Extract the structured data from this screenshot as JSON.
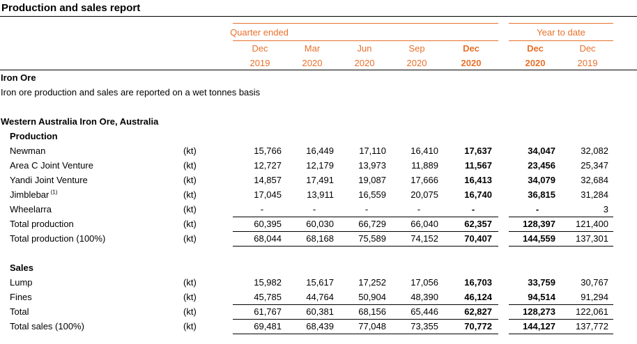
{
  "report": {
    "title": "Production and sales report",
    "group_quarter": "Quarter ended",
    "group_ytd": "Year to date",
    "columns": [
      {
        "month": "Dec",
        "year": "2019",
        "bold": false
      },
      {
        "month": "Mar",
        "year": "2020",
        "bold": false
      },
      {
        "month": "Jun",
        "year": "2020",
        "bold": false
      },
      {
        "month": "Sep",
        "year": "2020",
        "bold": false
      },
      {
        "month": "Dec",
        "year": "2020",
        "bold": true
      },
      {
        "month": "Dec",
        "year": "2020",
        "bold": true
      },
      {
        "month": "Dec",
        "year": "2019",
        "bold": false
      }
    ]
  },
  "section": {
    "heading": "Iron Ore",
    "note": "Iron ore production and sales are reported on a wet tonnes basis",
    "asset": "Western Australia Iron Ore, Australia"
  },
  "production": {
    "heading": "Production",
    "rows": [
      {
        "label": "Newman",
        "sup": "",
        "unit": "(kt)",
        "values": [
          "15,766",
          "16,449",
          "17,110",
          "16,410",
          "17,637",
          "34,047",
          "32,082"
        ]
      },
      {
        "label": "Area C Joint Venture",
        "sup": "",
        "unit": "(kt)",
        "values": [
          "12,727",
          "12,179",
          "13,973",
          "11,889",
          "11,567",
          "23,456",
          "25,347"
        ]
      },
      {
        "label": "Yandi Joint Venture",
        "sup": "",
        "unit": "(kt)",
        "values": [
          "14,857",
          "17,491",
          "19,087",
          "17,666",
          "16,413",
          "34,079",
          "32,684"
        ]
      },
      {
        "label": "Jimblebar",
        "sup": "(1)",
        "unit": "(kt)",
        "values": [
          "17,045",
          "13,911",
          "16,559",
          "20,075",
          "16,740",
          "36,815",
          "31,284"
        ]
      },
      {
        "label": "Wheelarra",
        "sup": "",
        "unit": "(kt)",
        "values": [
          "-",
          "-",
          "-",
          "-",
          "-",
          "-",
          "3"
        ]
      },
      {
        "label": "Total production",
        "sup": "",
        "unit": "(kt)",
        "values": [
          "60,395",
          "60,030",
          "66,729",
          "66,040",
          "62,357",
          "128,397",
          "121,400"
        ]
      },
      {
        "label": "Total production (100%)",
        "sup": "",
        "unit": "(kt)",
        "values": [
          "68,044",
          "68,168",
          "75,589",
          "74,152",
          "70,407",
          "144,559",
          "137,301"
        ]
      }
    ]
  },
  "sales": {
    "heading": "Sales",
    "rows": [
      {
        "label": "Lump",
        "sup": "",
        "unit": "(kt)",
        "values": [
          "15,982",
          "15,617",
          "17,252",
          "17,056",
          "16,703",
          "33,759",
          "30,767"
        ]
      },
      {
        "label": "Fines",
        "sup": "",
        "unit": "(kt)",
        "values": [
          "45,785",
          "44,764",
          "50,904",
          "48,390",
          "46,124",
          "94,514",
          "91,294"
        ]
      },
      {
        "label": "Total",
        "sup": "",
        "unit": "(kt)",
        "values": [
          "61,767",
          "60,381",
          "68,156",
          "65,446",
          "62,827",
          "128,273",
          "122,061"
        ]
      },
      {
        "label": "Total sales (100%)",
        "sup": "",
        "unit": "(kt)",
        "values": [
          "69,481",
          "68,439",
          "77,048",
          "73,355",
          "70,772",
          "144,127",
          "137,772"
        ]
      }
    ]
  },
  "colors": {
    "accent": "#e8702a",
    "text": "#000000"
  }
}
